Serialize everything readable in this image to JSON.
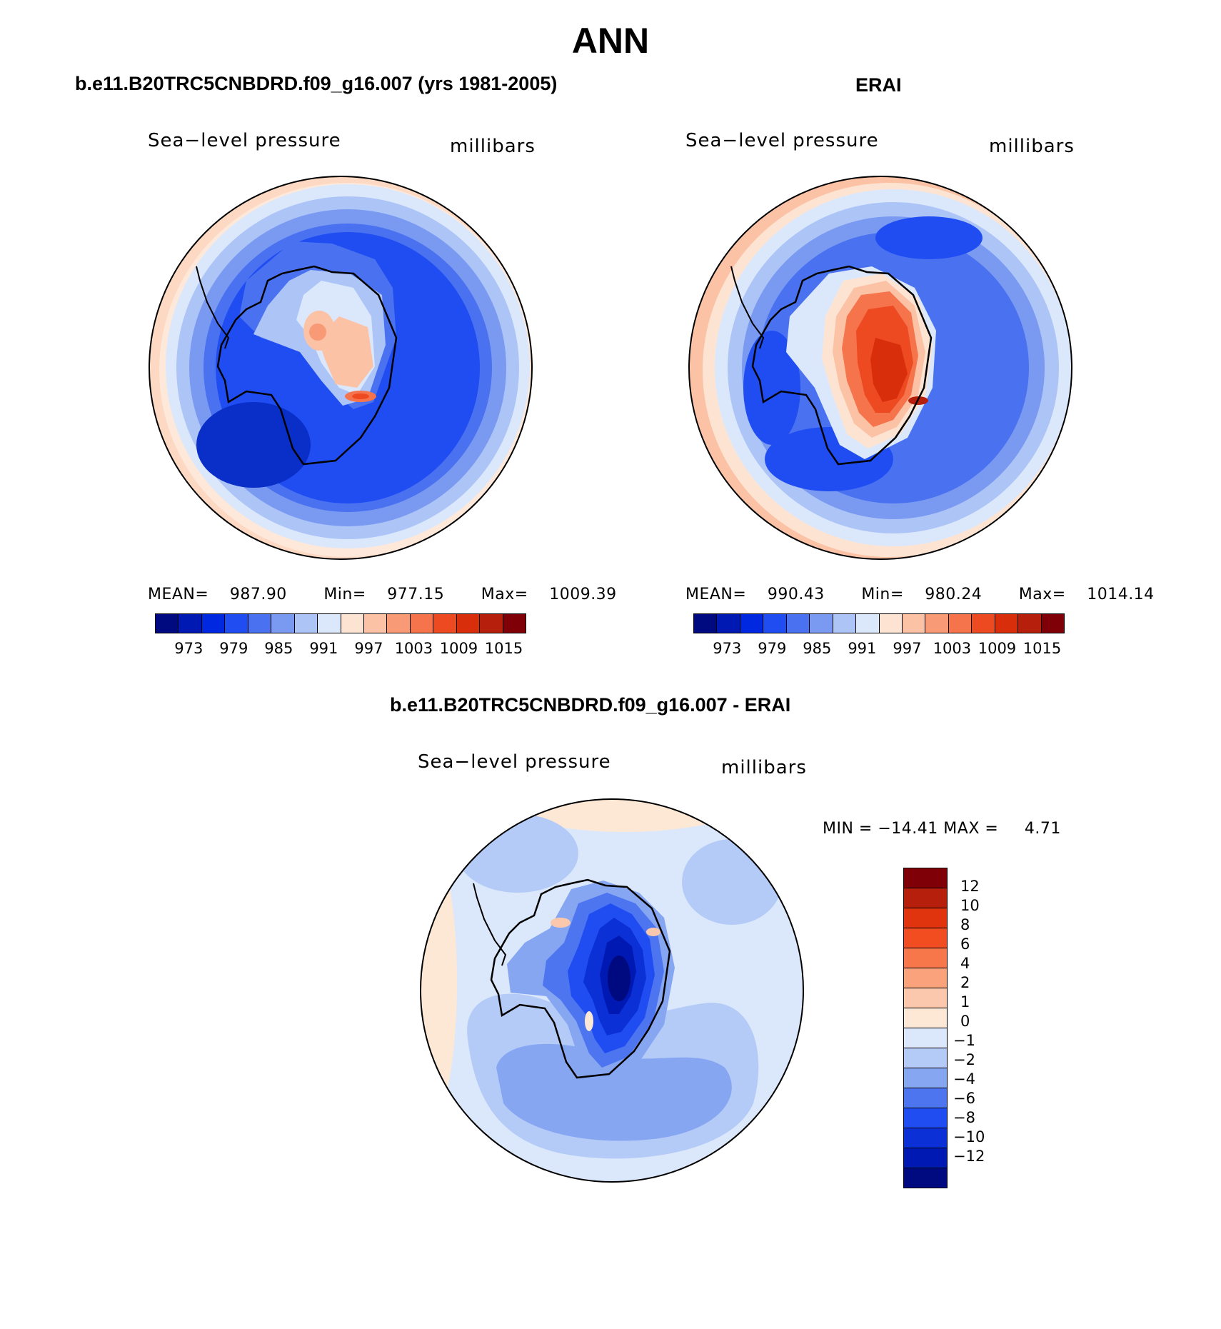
{
  "page_title": "ANN",
  "panels": [
    {
      "id": "model",
      "case_title": "b.e11.B20TRC5CNBDRD.f09_g16.007 (yrs 1981-2005)",
      "variable": "Sea−level pressure",
      "units": "millibars",
      "stats": {
        "mean_label": "MEAN=",
        "mean": "987.90",
        "min_label": "Min=",
        "min": "977.15",
        "max_label": "Max=",
        "max": "1009.39"
      }
    },
    {
      "id": "obs",
      "case_title": "ERAI",
      "variable": "Sea−level pressure",
      "units": "millibars",
      "stats": {
        "mean_label": "MEAN=",
        "mean": "990.43",
        "min_label": "Min=",
        "min": "980.24",
        "max_label": "Max=",
        "max": "1014.14"
      }
    },
    {
      "id": "diff",
      "case_title": "b.e11.B20TRC5CNBDRD.f09_g16.007 - ERAI",
      "variable": "Sea−level pressure",
      "units": "millibars",
      "stats": {
        "min_label": "MIN =",
        "min": "−14.41",
        "max_label": "MAX =",
        "max": "4.71"
      }
    }
  ],
  "colorbar_abs": {
    "labels": [
      "973",
      "979",
      "985",
      "991",
      "997",
      "1003",
      "1009",
      "1015"
    ],
    "colors": [
      "#000a80",
      "#0019b3",
      "#0028e0",
      "#1f4df2",
      "#4a72f0",
      "#7a9af2",
      "#adc4f7",
      "#dbe8fc",
      "#fde4d2",
      "#fcc2a6",
      "#f99a77",
      "#f5744c",
      "#ee4a22",
      "#d92e0c",
      "#b51f0b",
      "#800008"
    ]
  },
  "colorbar_diff": {
    "labels": [
      "12",
      "10",
      "8",
      "6",
      "4",
      "2",
      "1",
      "0",
      "−1",
      "−2",
      "−4",
      "−6",
      "−8",
      "−10",
      "−12"
    ],
    "colors": [
      "#800008",
      "#b51f0b",
      "#e0340e",
      "#f24d20",
      "#f7764a",
      "#f9a27c",
      "#fcc8ad",
      "#fde8d6",
      "#dbe8fc",
      "#b4cbf7",
      "#86a6f2",
      "#4d75f0",
      "#1f4df2",
      "#0a30d6",
      "#0019b3",
      "#000a80"
    ]
  }
}
